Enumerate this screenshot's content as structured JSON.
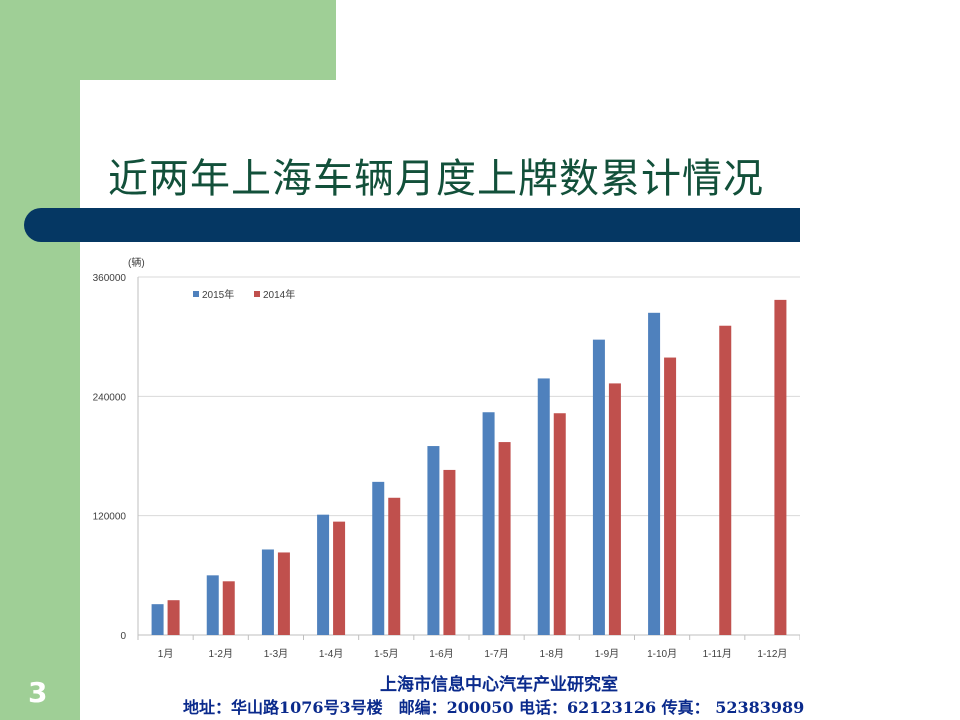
{
  "slide": {
    "title": "近两年上海车辆月度上牌数累计情况",
    "page_number": "3",
    "footer_org": "上海市信息中心汽车产业研究室",
    "footer_address": "地址：华山路1076号3号楼　邮编：200050  电话：62123126  传真： 52383989"
  },
  "colors": {
    "green": "#9fcf96",
    "navy": "#053763",
    "title": "#12503a",
    "footer": "#0a2a8c",
    "series_2015": "#4f81bd",
    "series_2014": "#c0504d"
  },
  "chart_data": {
    "type": "bar",
    "title": "",
    "xlabel": "",
    "ylabel": "(辆)",
    "ylim": [
      0,
      360000
    ],
    "yticks": [
      0,
      120000,
      240000,
      360000
    ],
    "grid": true,
    "legend_position": "top-left",
    "categories": [
      "1月",
      "1-2月",
      "1-3月",
      "1-4月",
      "1-5月",
      "1-6月",
      "1-7月",
      "1-8月",
      "1-9月",
      "1-10月",
      "1-11月",
      "1-12月"
    ],
    "series": [
      {
        "name": "2015年",
        "color": "#4f81bd",
        "values": [
          31000,
          60000,
          86000,
          121000,
          154000,
          190000,
          224000,
          258000,
          297000,
          324000,
          null,
          null
        ]
      },
      {
        "name": "2014年",
        "color": "#c0504d",
        "values": [
          35000,
          54000,
          83000,
          114000,
          138000,
          166000,
          194000,
          223000,
          253000,
          279000,
          311000,
          337000
        ]
      }
    ]
  }
}
